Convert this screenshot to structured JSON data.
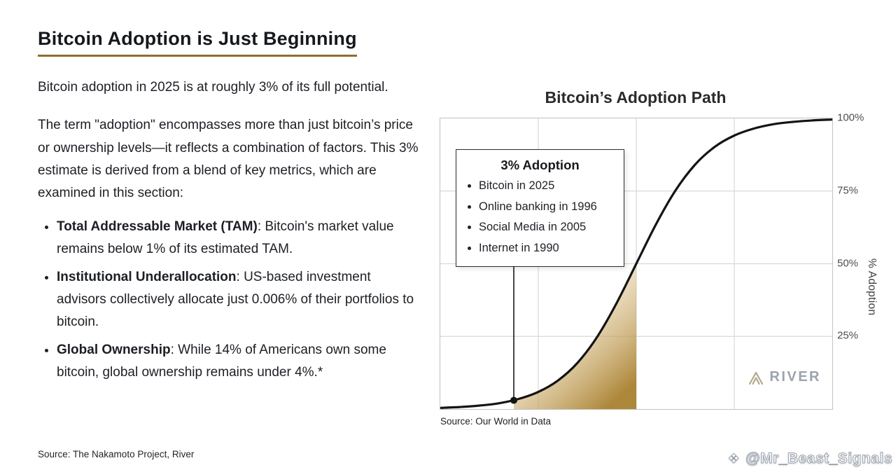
{
  "left": {
    "title": "Bitcoin Adoption is Just Beginning",
    "para1": "Bitcoin adoption in 2025 is at roughly 3% of its full potential.",
    "para2": "The term \"adoption\" encompasses more than just bitcoin’s price or ownership levels—it reflects a combination of factors. This 3% estimate is derived from a blend of key metrics, which are examined in this section:",
    "bullets": [
      {
        "lead": "Total Addressable Market (TAM)",
        "rest": ": Bitcoin's market value remains below 1% of its estimated TAM."
      },
      {
        "lead": "Institutional Underallocation",
        "rest": ": US-based investment advisors collectively allocate just 0.006% of their portfolios to bitcoin."
      },
      {
        "lead": "Global Ownership",
        "rest": ": While 14% of Americans own some bitcoin, global ownership remains under 4%.*"
      }
    ],
    "source": "Source: The Nakamoto Project, River"
  },
  "chart": {
    "title": "Bitcoin’s Adoption Path",
    "y_axis_label": "% Adoption",
    "y_ticks": [
      "100%",
      "75%",
      "50%",
      "25%"
    ],
    "annotation": {
      "title": "3% Adoption",
      "items": [
        "Bitcoin in 2025",
        "Online banking in 1996",
        "Social Media in 2005",
        "Internet in 1990"
      ]
    },
    "source": "Source: Our World in Data",
    "logo_text": "RIVER",
    "accent_gold": "#a9812f"
  },
  "chart_data": {
    "type": "line",
    "title": "Bitcoin’s Adoption Path",
    "xlabel": "",
    "ylabel": "% Adoption",
    "xlim": [
      0,
      100
    ],
    "ylim": [
      0,
      100
    ],
    "grid": true,
    "y_gridlines": [
      25,
      50,
      75
    ],
    "y_tick_labels": [
      "100%",
      "75%",
      "50%",
      "25%"
    ],
    "x": [
      0,
      5,
      10,
      15,
      20,
      25,
      30,
      35,
      40,
      45,
      50,
      55,
      60,
      65,
      70,
      75,
      80,
      85,
      90,
      95,
      100
    ],
    "y": [
      0.4,
      0.7,
      1.2,
      2.0,
      3.5,
      5.9,
      9.8,
      15.9,
      24.8,
      36.5,
      50,
      63.5,
      75.2,
      84.1,
      90.2,
      94.1,
      96.5,
      98.0,
      98.8,
      99.3,
      99.6
    ],
    "marker": {
      "x": 18.75,
      "y": 3,
      "label": "3% Adoption"
    },
    "shaded_region": {
      "x_start": 18.75,
      "x_end": 50,
      "style": "gold-gradient"
    }
  },
  "watermark": {
    "icon": "❖",
    "text": "@Mr_Beast_Signals"
  }
}
